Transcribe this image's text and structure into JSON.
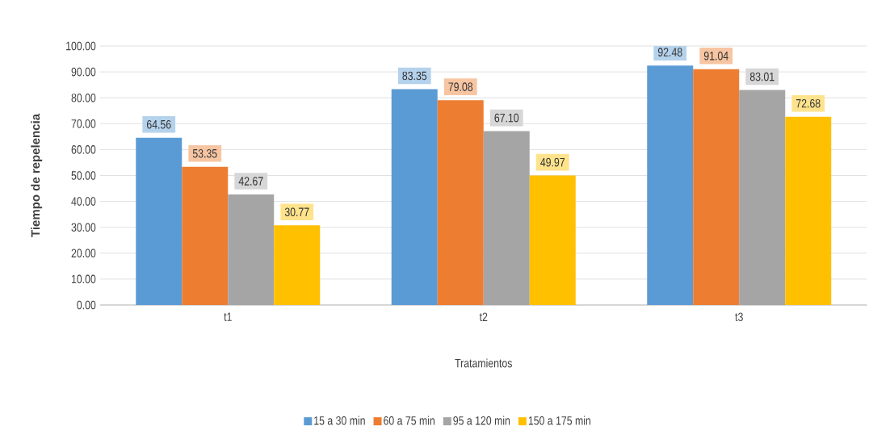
{
  "chart_data": {
    "type": "bar",
    "xlabel": "Tratamientos",
    "ylabel": "Tiempo de repelencia",
    "categories": [
      "t1",
      "t2",
      "t3"
    ],
    "series": [
      {
        "name": "15 a 30 min",
        "color": "#5b9bd5",
        "values": [
          64.56,
          83.35,
          92.48
        ],
        "value_labels": [
          "64.56",
          "83.35",
          "92.48"
        ]
      },
      {
        "name": "60 a 75 min",
        "color": "#ed7d31",
        "values": [
          53.35,
          79.08,
          91.04
        ],
        "value_labels": [
          "53.35",
          "79.08",
          "91.04"
        ]
      },
      {
        "name": "95 a 120 min",
        "color": "#a5a5a5",
        "values": [
          42.67,
          67.1,
          83.01
        ],
        "value_labels": [
          "42.67",
          "67.10",
          "83.01"
        ]
      },
      {
        "name": "150 a 175 min",
        "color": "#ffc000",
        "values": [
          30.77,
          49.97,
          72.68
        ],
        "value_labels": [
          "30.77",
          "49.97",
          "72.68"
        ]
      }
    ],
    "ylim": [
      0,
      100
    ],
    "yticks": [
      {
        "value": 0,
        "label": "0.00"
      },
      {
        "value": 10,
        "label": "10.00"
      },
      {
        "value": 20,
        "label": "20.00"
      },
      {
        "value": 30,
        "label": "30.00"
      },
      {
        "value": 40,
        "label": "40.00"
      },
      {
        "value": 50,
        "label": "50.00"
      },
      {
        "value": 60,
        "label": "60.00"
      },
      {
        "value": 70,
        "label": "70.00"
      },
      {
        "value": 80,
        "label": "80.00"
      },
      {
        "value": 90,
        "label": "90.00"
      },
      {
        "value": 100,
        "label": "100.00"
      }
    ],
    "grid": "y",
    "legend": "bottom"
  }
}
